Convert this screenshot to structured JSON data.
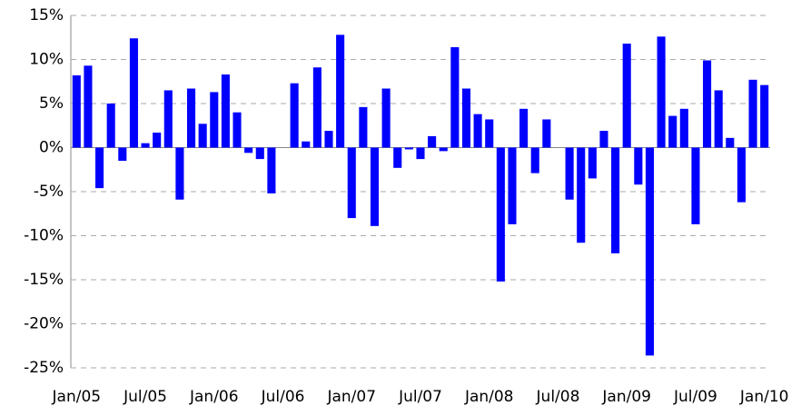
{
  "chart_data": {
    "type": "bar",
    "categories": [
      "Jan/05",
      null,
      null,
      null,
      null,
      null,
      "Jul/05",
      null,
      null,
      null,
      null,
      null,
      "Jan/06",
      null,
      null,
      null,
      null,
      null,
      "Jul/06",
      null,
      null,
      null,
      null,
      null,
      "Jan/07",
      null,
      null,
      null,
      null,
      null,
      "Jul/07",
      null,
      null,
      null,
      null,
      null,
      "Jan/08",
      null,
      null,
      null,
      null,
      null,
      "Jul/08",
      null,
      null,
      null,
      null,
      null,
      "Jan/09",
      null,
      null,
      null,
      null,
      null,
      "Jul/09",
      null,
      null,
      null,
      null,
      null,
      "Jan/10"
    ],
    "values": [
      8.2,
      9.3,
      -4.6,
      5.0,
      -1.5,
      12.4,
      0.5,
      1.7,
      6.5,
      -5.9,
      6.7,
      2.7,
      6.3,
      8.3,
      4.0,
      -0.6,
      -1.3,
      -5.2,
      0,
      7.3,
      0.7,
      9.1,
      1.9,
      12.8,
      -8.0,
      4.6,
      -8.9,
      6.7,
      -2.3,
      -0.2,
      -1.3,
      1.3,
      -0.4,
      11.4,
      6.7,
      3.8,
      3.2,
      -15.2,
      -8.7,
      4.4,
      -2.9,
      3.2,
      0,
      -5.9,
      -10.8,
      -3.5,
      1.9,
      -12.0,
      11.8,
      -4.2,
      -23.6,
      12.6,
      3.6,
      4.4,
      -8.7,
      9.9,
      6.5,
      1.1,
      -6.2,
      7.7,
      7.1
    ],
    "color": "#0000ff",
    "ylim": [
      -25,
      15
    ],
    "yticks": [
      {
        "value": -25,
        "label": "-25%"
      },
      {
        "value": -20,
        "label": "-20%"
      },
      {
        "value": -15,
        "label": "-15%"
      },
      {
        "value": -10,
        "label": "-10%"
      },
      {
        "value": -5,
        "label": "-5%"
      },
      {
        "value": 0,
        "label": "0%"
      },
      {
        "value": 5,
        "label": "5%"
      },
      {
        "value": 10,
        "label": "10%"
      },
      {
        "value": 15,
        "label": "15%"
      }
    ],
    "grid": true
  }
}
